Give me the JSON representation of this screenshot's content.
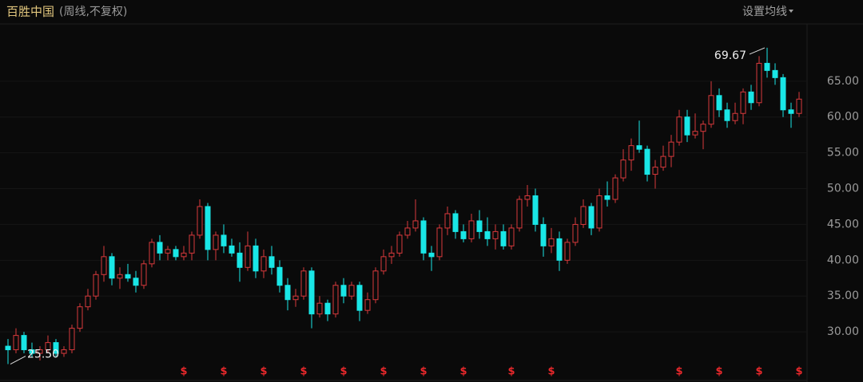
{
  "header": {
    "title": "百胜中国",
    "subtitle": "(周线,不复权)",
    "button": "设置均线"
  },
  "chart_data": {
    "type": "candlestick",
    "ohlc": [
      [
        28,
        29,
        25.5,
        27.5
      ],
      [
        27.5,
        30.5,
        27,
        29.5
      ],
      [
        29.5,
        30,
        27,
        27.5
      ],
      [
        27.5,
        28.5,
        26.5,
        27
      ],
      [
        27,
        28,
        26,
        27.5
      ],
      [
        27.5,
        29.5,
        27,
        28.5
      ],
      [
        28.5,
        29,
        26.5,
        27
      ],
      [
        27,
        28,
        26.5,
        27.5
      ],
      [
        27.5,
        31,
        27,
        30.5
      ],
      [
        30.5,
        34,
        30,
        33.5
      ],
      [
        33.5,
        36,
        33,
        35
      ],
      [
        35,
        38.5,
        34.5,
        38
      ],
      [
        38,
        42,
        37,
        40.5
      ],
      [
        40.5,
        41,
        36.5,
        37.5
      ],
      [
        37.5,
        39,
        36,
        38
      ],
      [
        38,
        39.5,
        37,
        37.5
      ],
      [
        37.5,
        38.5,
        35.5,
        36.5
      ],
      [
        36.5,
        40,
        36,
        39.5
      ],
      [
        39.5,
        43,
        39,
        42.5
      ],
      [
        42.5,
        43.5,
        40,
        41
      ],
      [
        41,
        42,
        40,
        41.5
      ],
      [
        41.5,
        42,
        40,
        40.5
      ],
      [
        40.5,
        42,
        40,
        41
      ],
      [
        41,
        44,
        40,
        43.5
      ],
      [
        43.5,
        48.5,
        43,
        47.5
      ],
      [
        47.5,
        48,
        40,
        41.5
      ],
      [
        41.5,
        44,
        40,
        43.5
      ],
      [
        43.5,
        45,
        41,
        42
      ],
      [
        42,
        43,
        40.5,
        41
      ],
      [
        41,
        42.5,
        37,
        39
      ],
      [
        39,
        44,
        38.5,
        42
      ],
      [
        42,
        43,
        37.5,
        38.5
      ],
      [
        38.5,
        41.5,
        37.5,
        40.5
      ],
      [
        40.5,
        42,
        38,
        39
      ],
      [
        39,
        40,
        35.5,
        36.5
      ],
      [
        36.5,
        37.5,
        33,
        34.5
      ],
      [
        34.5,
        36,
        33.5,
        35
      ],
      [
        35,
        39,
        34.5,
        38.5
      ],
      [
        38.5,
        39,
        30.5,
        32.5
      ],
      [
        32.5,
        35,
        32,
        34
      ],
      [
        34,
        34.5,
        31.5,
        32.5
      ],
      [
        32.5,
        37,
        32,
        36.5
      ],
      [
        36.5,
        37.5,
        34,
        35
      ],
      [
        35,
        37,
        34.5,
        36.5
      ],
      [
        36.5,
        37,
        31.5,
        33
      ],
      [
        33,
        35.5,
        32.5,
        34.5
      ],
      [
        34.5,
        39,
        34,
        38.5
      ],
      [
        38.5,
        41.5,
        38,
        40.5
      ],
      [
        40.5,
        42,
        39.5,
        41
      ],
      [
        41,
        44,
        40.5,
        43.5
      ],
      [
        43.5,
        45.5,
        43,
        44.5
      ],
      [
        44.5,
        48.5,
        44,
        45.5
      ],
      [
        45.5,
        46,
        40,
        41
      ],
      [
        41,
        42,
        38.5,
        40.5
      ],
      [
        40.5,
        45,
        40,
        44.5
      ],
      [
        44.5,
        47.5,
        43.5,
        46.5
      ],
      [
        46.5,
        47,
        43,
        44
      ],
      [
        44,
        45,
        42.5,
        43
      ],
      [
        43,
        46.5,
        42.5,
        45.5
      ],
      [
        45.5,
        47,
        43,
        44
      ],
      [
        44,
        46,
        42,
        43
      ],
      [
        43,
        45,
        41.5,
        44
      ],
      [
        44,
        45,
        41.5,
        42
      ],
      [
        42,
        45,
        41.5,
        44.5
      ],
      [
        44.5,
        49,
        44,
        48.5
      ],
      [
        48.5,
        50.5,
        47.5,
        49
      ],
      [
        49,
        50,
        44,
        45
      ],
      [
        45,
        46,
        40.5,
        42
      ],
      [
        42,
        44.5,
        41,
        43
      ],
      [
        43,
        44,
        38.5,
        40
      ],
      [
        40,
        43,
        39.5,
        42.5
      ],
      [
        42.5,
        46,
        42,
        45
      ],
      [
        45,
        48.5,
        44.5,
        47.5
      ],
      [
        47.5,
        48,
        43.5,
        44.5
      ],
      [
        44.5,
        50,
        44,
        49
      ],
      [
        49,
        51,
        47.5,
        48.5
      ],
      [
        48.5,
        52,
        48,
        51.5
      ],
      [
        51.5,
        55.5,
        51,
        54
      ],
      [
        54,
        57,
        52.5,
        56
      ],
      [
        56,
        59.5,
        55,
        55.5
      ],
      [
        55.5,
        56,
        51,
        52
      ],
      [
        52,
        54,
        50,
        53
      ],
      [
        53,
        56,
        52.5,
        54.5
      ],
      [
        54.5,
        57.5,
        53,
        56.5
      ],
      [
        56.5,
        61,
        56,
        60
      ],
      [
        60,
        61,
        56.5,
        57.5
      ],
      [
        57.5,
        60.5,
        57,
        58
      ],
      [
        58,
        59.5,
        55.5,
        59
      ],
      [
        59,
        65,
        58.5,
        63
      ],
      [
        63,
        64,
        60,
        61
      ],
      [
        61,
        62,
        58.5,
        59.5
      ],
      [
        59.5,
        62,
        59,
        60.5
      ],
      [
        60.5,
        64,
        59,
        63.5
      ],
      [
        63.5,
        64.5,
        61,
        62
      ],
      [
        62,
        68.5,
        61.5,
        67.5
      ],
      [
        67.5,
        69.67,
        65.5,
        66.5
      ],
      [
        66.5,
        67.5,
        64.5,
        65.5
      ],
      [
        65.5,
        66,
        60,
        61
      ],
      [
        61,
        62,
        58.5,
        60.5
      ],
      [
        60.5,
        63.5,
        60,
        62.5
      ]
    ],
    "up_color": "#d8393c",
    "down_color": "#19e6e6",
    "ylim": [
      24,
      73
    ],
    "yticks": [
      {
        "value": 30,
        "label": "30.00"
      },
      {
        "value": 35,
        "label": "35.00"
      },
      {
        "value": 40,
        "label": "40.00"
      },
      {
        "value": 45,
        "label": "45.00"
      },
      {
        "value": 50,
        "label": "50.00"
      },
      {
        "value": 55,
        "label": "55.00"
      },
      {
        "value": 60,
        "label": "60.00"
      },
      {
        "value": 65,
        "label": "65.00"
      }
    ],
    "grid": true,
    "annotations": [
      {
        "value": 69.67,
        "label": "69.67",
        "side": "left"
      },
      {
        "value": 25.5,
        "label": "25.50",
        "side": "right"
      }
    ],
    "event_label": "$",
    "event_color": "#e8282b",
    "events": [
      22,
      27,
      32,
      37,
      42,
      47,
      52,
      57,
      63,
      68,
      84,
      89,
      94,
      99
    ]
  }
}
